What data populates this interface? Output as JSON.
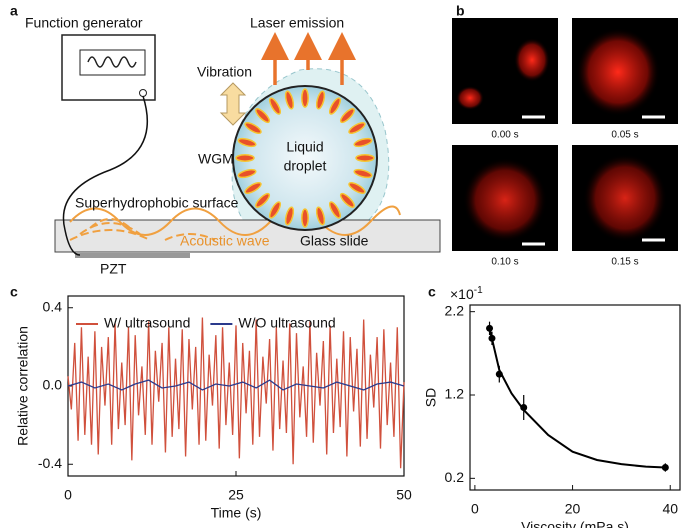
{
  "panel_labels": [
    "a",
    "b",
    "c",
    "c"
  ],
  "diagram": {
    "labels": [
      "Function generator",
      "Laser emission",
      "Vibration",
      "Liquid",
      "droplet",
      "WGM",
      "Superhydrophobic surface",
      "Acoustic wave",
      "Glass slide",
      "PZT"
    ]
  },
  "images": {
    "times": [
      "0.00 s",
      "0.05 s",
      "0.10 s",
      "0.15 s"
    ]
  },
  "chart_data": [
    {
      "type": "line",
      "xlabel": "Time (s)",
      "ylabel": "Relative correlation",
      "xlim": [
        0,
        50
      ],
      "ylim": [
        -0.46,
        0.46
      ],
      "xticks": [
        0,
        25,
        50
      ],
      "yticks": [
        0.4,
        {
          "value": 0,
          "label": "0.0"
        },
        -0.4
      ],
      "legend": "top",
      "series": [
        {
          "name": "W/ ultrasound",
          "color": "#d0503c",
          "x": [
            0,
            0.5,
            1,
            1.5,
            2,
            2.5,
            3,
            3.5,
            4,
            4.5,
            5,
            5.5,
            6,
            6.5,
            7,
            7.5,
            8,
            8.5,
            9,
            9.5,
            10,
            10.5,
            11,
            11.5,
            12,
            12.5,
            13,
            13.5,
            14,
            14.5,
            15,
            15.5,
            16,
            16.5,
            17,
            17.5,
            18,
            18.5,
            19,
            19.5,
            20,
            20.5,
            21,
            21.5,
            22,
            22.5,
            23,
            23.5,
            24,
            24.5,
            25,
            25.5,
            26,
            26.5,
            27,
            27.5,
            28,
            28.5,
            29,
            29.5,
            30,
            30.5,
            31,
            31.5,
            32,
            32.5,
            33,
            33.5,
            34,
            34.5,
            35,
            35.5,
            36,
            36.5,
            37,
            37.5,
            38,
            38.5,
            39,
            39.5,
            40,
            40.5,
            41,
            41.5,
            42,
            42.5,
            43,
            43.5,
            44,
            44.5,
            45,
            45.5,
            46,
            46.5,
            47,
            47.5,
            48,
            48.5,
            49,
            49.5,
            50
          ],
          "values": [
            0.05,
            -0.12,
            0.22,
            -0.28,
            0.3,
            -0.25,
            0.15,
            -0.3,
            0.28,
            -0.35,
            0.2,
            -0.1,
            0.25,
            -0.3,
            0.32,
            -0.22,
            0.12,
            -0.2,
            0.3,
            -0.38,
            0.26,
            -0.15,
            0.1,
            -0.25,
            0.33,
            -0.3,
            0.18,
            -0.08,
            0.22,
            -0.34,
            0.3,
            -0.26,
            0.14,
            -0.22,
            0.29,
            -0.36,
            0.24,
            -0.12,
            0.2,
            -0.3,
            0.35,
            -0.28,
            0.16,
            -0.1,
            0.26,
            -0.32,
            0.3,
            -0.2,
            0.12,
            -0.25,
            0.31,
            -0.37,
            0.22,
            -0.14,
            0.18,
            -0.3,
            0.34,
            -0.26,
            0.15,
            -0.09,
            0.24,
            -0.33,
            0.3,
            -0.22,
            0.13,
            -0.24,
            0.32,
            -0.4,
            0.27,
            -0.16,
            0.1,
            -0.26,
            0.33,
            -0.29,
            0.17,
            -0.1,
            0.23,
            -0.35,
            0.31,
            -0.24,
            0.14,
            -0.21,
            0.28,
            -0.36,
            0.25,
            -0.13,
            0.19,
            -0.31,
            0.34,
            -0.27,
            0.16,
            -0.11,
            0.25,
            -0.32,
            0.29,
            -0.2,
            0.12,
            -0.26,
            0.3,
            -0.42,
            0.02
          ]
        },
        {
          "name": "W/O ultrasound",
          "color": "#2b3a8c",
          "x": [
            0,
            2,
            4,
            6,
            8,
            10,
            12,
            14,
            16,
            18,
            20,
            22,
            24,
            26,
            28,
            30,
            32,
            34,
            36,
            38,
            40,
            42,
            44,
            46,
            48,
            50
          ],
          "values": [
            0,
            0.02,
            -0.01,
            0.01,
            -0.02,
            0.01,
            0.03,
            -0.01,
            0,
            0.02,
            -0.02,
            0.01,
            0,
            0.02,
            -0.01,
            0.03,
            -0.02,
            0.01,
            0,
            -0.01,
            0.02,
            0,
            -0.02,
            0.01,
            0.02,
            0
          ]
        }
      ]
    },
    {
      "type": "scatter",
      "xlabel": "Viscosity (mPa.s)",
      "ylabel": "SD",
      "y_scale_base": "×10",
      "y_scale_exponent": "-1",
      "xlim": [
        -1,
        42
      ],
      "ylim": [
        0.06,
        2.28
      ],
      "xticks": [
        0,
        20,
        40
      ],
      "yticks": [
        2.2,
        1.2,
        0.2
      ],
      "series": [
        {
          "style": "line",
          "color": "#000000",
          "x": [
            3,
            5,
            7.5,
            10,
            15,
            20,
            25,
            30,
            35,
            39
          ],
          "values": [
            2.0,
            1.5,
            1.22,
            1.02,
            0.72,
            0.52,
            0.42,
            0.37,
            0.34,
            0.33
          ]
        },
        {
          "style": "points",
          "color": "#000000",
          "x": [
            3,
            3.5,
            5,
            10,
            39
          ],
          "values": [
            2.0,
            1.88,
            1.45,
            1.05,
            0.33
          ],
          "errors": [
            0.08,
            0.08,
            0.1,
            0.15,
            0.05
          ]
        }
      ]
    }
  ]
}
